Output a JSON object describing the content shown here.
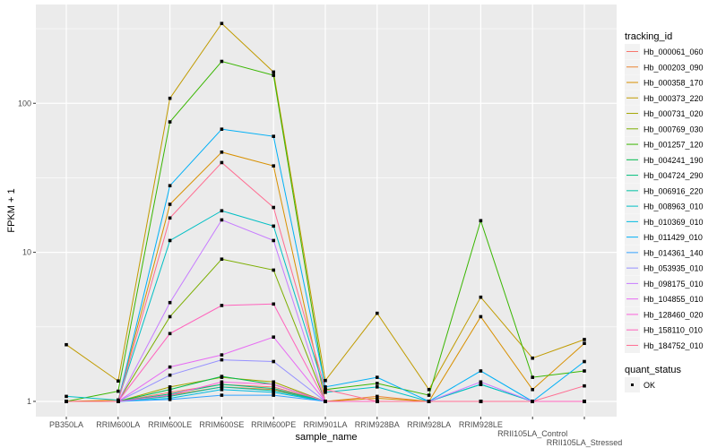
{
  "chart_data": {
    "type": "line",
    "xlabel": "sample_name",
    "ylabel": "FPKM + 1",
    "y_scale": "log10",
    "ylim": [
      0.79,
      460
    ],
    "y_ticks": [
      1,
      10,
      100
    ],
    "y_tick_labels": [
      "1",
      "10",
      "100"
    ],
    "grid": true,
    "legend_placement": "right",
    "categories": [
      "PB350LA",
      "RRIM600LA",
      "RRIM600LE",
      "RRIM600SE",
      "RRIM600PE",
      "RRIM901LA",
      "RRIM928BA",
      "RRIM928LA",
      "RRIM928LE",
      "RRII105LA_Control",
      "RRII105LA_Stressed"
    ],
    "legend_title": "tracking_id",
    "shape_legend_title": "quant_status",
    "shape_legend_entries": [
      "OK"
    ],
    "series": [
      {
        "name": "Hb_000061_060",
        "color": "#F8766D",
        "values": [
          1,
          1,
          1.15,
          1.3,
          1.25,
          1,
          1,
          1,
          1,
          1,
          1
        ]
      },
      {
        "name": "Hb_000203_090",
        "color": "#EA8331",
        "values": [
          1,
          1,
          1.1,
          1.25,
          1.2,
          1,
          1.08,
          1,
          1,
          1,
          1
        ]
      },
      {
        "name": "Hb_000358_170",
        "color": "#D89000",
        "values": [
          1,
          1.02,
          21,
          47,
          38,
          1,
          1.05,
          1,
          3.7,
          1.2,
          2.45
        ]
      },
      {
        "name": "Hb_000373_220",
        "color": "#C09B00",
        "values": [
          2.4,
          1.37,
          108,
          343,
          162,
          1.38,
          3.9,
          1.2,
          5.0,
          1.95,
          2.6
        ]
      },
      {
        "name": "Hb_000731_020",
        "color": "#A3A500",
        "values": [
          1,
          1,
          1.25,
          1.45,
          1.35,
          1,
          1,
          1,
          1,
          1,
          1
        ]
      },
      {
        "name": "Hb_000769_030",
        "color": "#7CAE00",
        "values": [
          1,
          1,
          3.7,
          9,
          7.6,
          1,
          1,
          1,
          1,
          1,
          1
        ]
      },
      {
        "name": "Hb_001257_120",
        "color": "#39B600",
        "values": [
          1,
          1.17,
          75,
          191,
          154,
          1.2,
          1.32,
          1.1,
          16.3,
          1.45,
          1.6
        ]
      },
      {
        "name": "Hb_004241_190",
        "color": "#00BB4E",
        "values": [
          1,
          1,
          1.2,
          1.47,
          1.3,
          1,
          1,
          1,
          1,
          1,
          1
        ]
      },
      {
        "name": "Hb_004724_290",
        "color": "#00BF7D",
        "values": [
          1,
          1,
          1.12,
          1.3,
          1.22,
          1,
          1,
          1,
          1,
          1,
          1
        ]
      },
      {
        "name": "Hb_006916_220",
        "color": "#00C1A3",
        "values": [
          1,
          1,
          1.08,
          1.25,
          1.18,
          1,
          1,
          1,
          1.3,
          1,
          1
        ]
      },
      {
        "name": "Hb_008963_010",
        "color": "#00BFC4",
        "values": [
          1.08,
          1.02,
          12,
          19,
          15,
          1.15,
          1.25,
          1,
          1.3,
          1,
          1
        ]
      },
      {
        "name": "Hb_010369_010",
        "color": "#00BAE0",
        "values": [
          1,
          1,
          1.05,
          1.2,
          1.15,
          1,
          1,
          1,
          1,
          1,
          1
        ]
      },
      {
        "name": "Hb_011429_010",
        "color": "#00B0F6",
        "values": [
          1,
          1,
          28,
          67,
          60,
          1.25,
          1.45,
          1,
          1.6,
          1,
          1.85
        ]
      },
      {
        "name": "Hb_014361_140",
        "color": "#35A2FF",
        "values": [
          1,
          1,
          1.03,
          1.1,
          1.1,
          1,
          1,
          1,
          1,
          1,
          1
        ]
      },
      {
        "name": "Hb_053935_010",
        "color": "#9590FF",
        "values": [
          1,
          1,
          1.5,
          1.9,
          1.85,
          1,
          1,
          1,
          1,
          1,
          1
        ]
      },
      {
        "name": "Hb_098175_010",
        "color": "#C77CFF",
        "values": [
          1,
          1,
          4.6,
          16.5,
          12,
          1,
          1,
          1,
          1.35,
          1,
          1
        ]
      },
      {
        "name": "Hb_104855_010",
        "color": "#E76BF3",
        "values": [
          1,
          1,
          1.7,
          2.05,
          2.7,
          1,
          1,
          1,
          1,
          1,
          1
        ]
      },
      {
        "name": "Hb_128460_020",
        "color": "#FA62DB",
        "values": [
          1,
          1,
          1.1,
          1.35,
          1.3,
          1,
          1,
          1,
          1,
          1,
          1
        ]
      },
      {
        "name": "Hb_158110_010",
        "color": "#FF62BC",
        "values": [
          1,
          1,
          2.85,
          4.4,
          4.5,
          1,
          1,
          1,
          1,
          1,
          1
        ]
      },
      {
        "name": "Hb_184752_010",
        "color": "#FF6C91",
        "values": [
          1,
          1,
          17,
          40,
          20,
          1.2,
          1,
          1,
          1,
          1,
          1.27
        ]
      }
    ]
  }
}
